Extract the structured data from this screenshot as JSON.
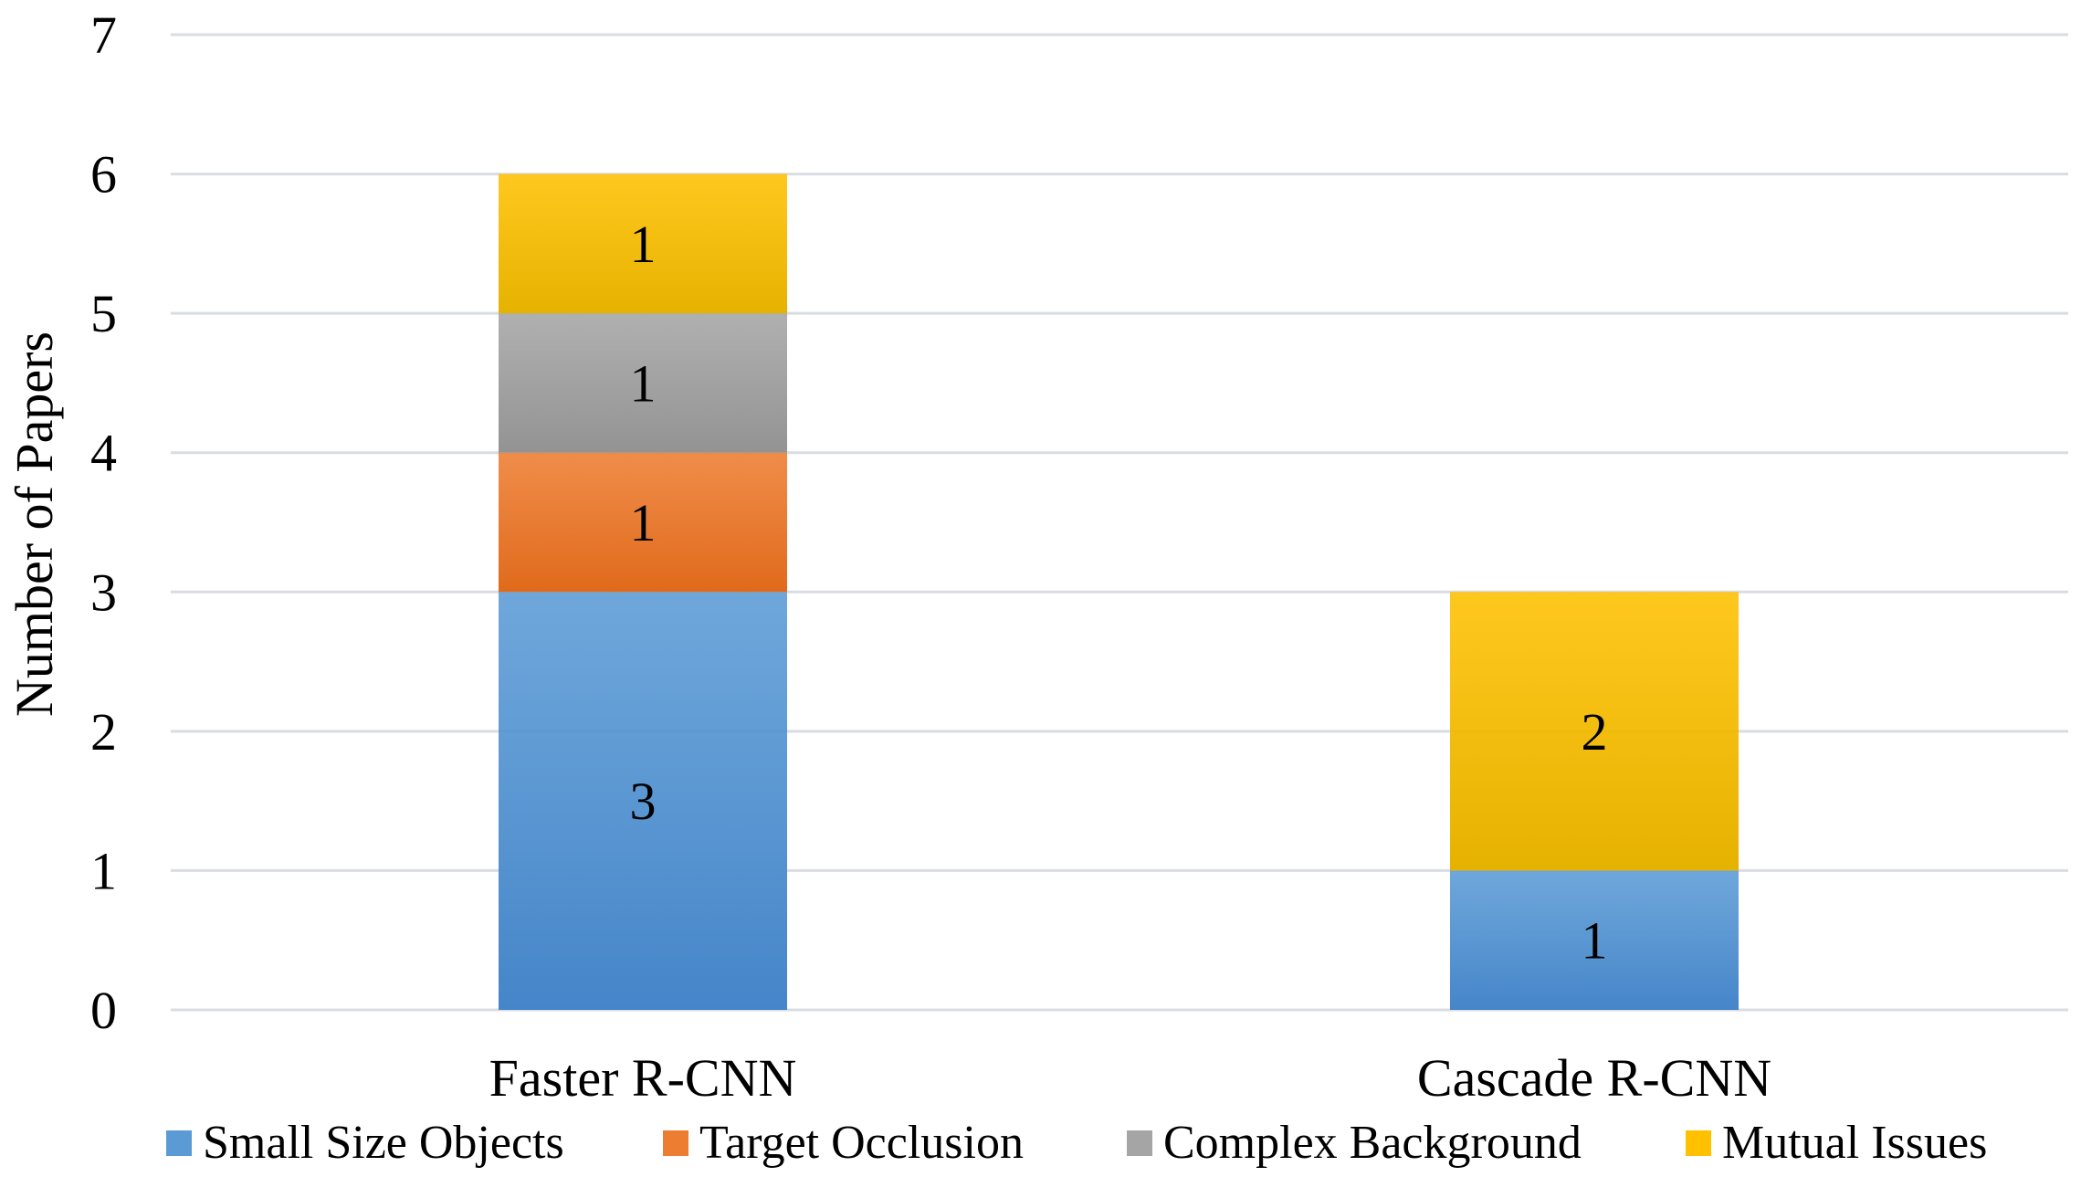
{
  "chart_data": {
    "type": "bar",
    "stacked": true,
    "title": "",
    "xlabel": "",
    "ylabel": "Number of Papers",
    "ylim": [
      0,
      7
    ],
    "yticks": [
      0,
      1,
      2,
      3,
      4,
      5,
      6,
      7
    ],
    "grid": true,
    "legend_position": "bottom",
    "categories": [
      "Faster R-CNN",
      "Cascade R-CNN"
    ],
    "series": [
      {
        "name": "Small Size Objects",
        "values": [
          3,
          1
        ],
        "labels": [
          "3",
          "1"
        ],
        "color": "#5b9bd5",
        "color_dark": "#4585c9"
      },
      {
        "name": "Target Occlusion",
        "values": [
          1,
          0
        ],
        "labels": [
          "1",
          ""
        ],
        "color": "#ed7d31",
        "color_dark": "#e06a1b"
      },
      {
        "name": "Complex Background",
        "values": [
          1,
          0
        ],
        "labels": [
          "1",
          ""
        ],
        "color": "#a5a5a5",
        "color_dark": "#939393"
      },
      {
        "name": "Mutual Issues",
        "values": [
          1,
          2
        ],
        "labels": [
          "1",
          "2"
        ],
        "color": "#ffc000",
        "color_dark": "#e6b200"
      }
    ]
  }
}
